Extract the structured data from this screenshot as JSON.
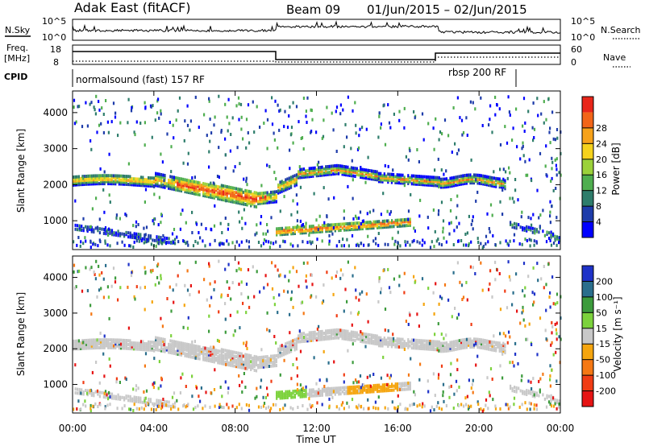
{
  "header": {
    "title": "Adak East (fitACF)",
    "beam": "Beam 09",
    "date_range": "01/Jun/2015 – 02/Jun/2015"
  },
  "nsky_panel": {
    "left_label": "N.Sky",
    "right_label": "N.Search",
    "ticks": [
      "10^5",
      "10^0"
    ],
    "right_ticks": [
      "10^5",
      "10^0"
    ]
  },
  "freq_panel": {
    "left_label_1": "Freq.",
    "left_label_2": "[MHz]",
    "ticks": [
      "18",
      "8"
    ],
    "right_label": "Nave",
    "right_ticks": [
      "60",
      "0"
    ]
  },
  "cpid_panel": {
    "label": "CPID",
    "mode_1": "normalsound (fast) 157 RF",
    "mode_2": "rbsp 200 RF"
  },
  "chart_data": [
    {
      "type": "heatmap",
      "parameter": "Power",
      "ylabel": "Slant Range [km]",
      "xlabel": "",
      "ylim": [
        200,
        4600
      ],
      "y_ticks": [
        1000,
        2000,
        3000,
        4000
      ],
      "colorbar": {
        "label": "Power [dB]",
        "ticks": [
          "4",
          "8",
          "12",
          "16",
          "20",
          "24",
          "28"
        ],
        "colors": [
          "#0000ff",
          "#1e3caa",
          "#2e7d6b",
          "#4fae4f",
          "#9bd13a",
          "#f5d21c",
          "#f7a21a",
          "#f26518",
          "#e8261a"
        ]
      }
    },
    {
      "type": "heatmap",
      "parameter": "Velocity",
      "ylabel": "Slant Range [km]",
      "xlabel": "Time UT",
      "ylim": [
        200,
        4600
      ],
      "y_ticks": [
        1000,
        2000,
        3000,
        4000
      ],
      "x_ticks": [
        "00:00",
        "04:00",
        "08:00",
        "12:00",
        "16:00",
        "20:00",
        "00:00"
      ],
      "colorbar": {
        "label": "Velocity [m s^-1]",
        "ticks": [
          "200",
          "100",
          "50",
          "15",
          "-15",
          "-50",
          "-100",
          "-200"
        ],
        "colors": [
          "#1e32c8",
          "#2a6e8c",
          "#3c9b3c",
          "#7cd23c",
          "#c8c8c8",
          "#f5a50f",
          "#f57814",
          "#f03c14",
          "#e61414"
        ]
      }
    }
  ]
}
